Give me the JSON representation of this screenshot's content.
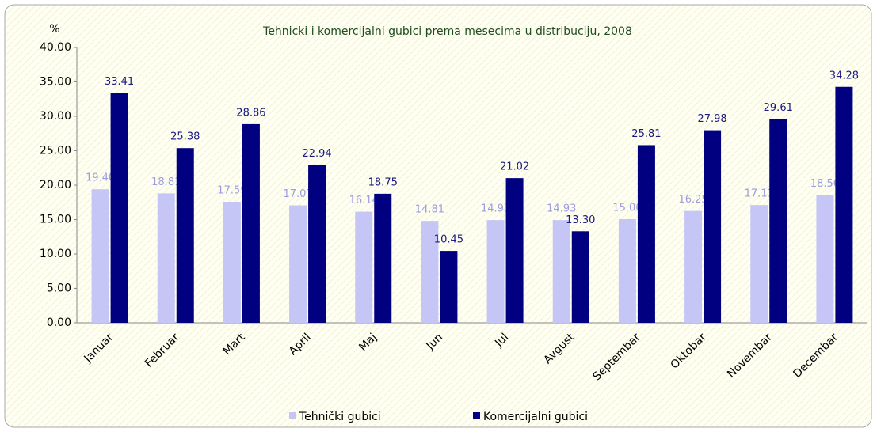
{
  "chart_data": {
    "type": "bar",
    "title": "Tehnicki i komercijalni gubici prema mesecima u distribuciju, 2008",
    "ylabel": "%",
    "categories": [
      "Januar",
      "Februar",
      "Mart",
      "April",
      "Maj",
      "Jun",
      "Jul",
      "Avgust",
      "Septembar",
      "Oktobar",
      "Novembar",
      "Decembar"
    ],
    "series": [
      {
        "name": "Tehnički gubici",
        "color": "#c6c6f6",
        "label_color": "#9d9de0",
        "values": [
          19.4,
          18.81,
          17.59,
          17.07,
          16.14,
          14.81,
          14.93,
          14.93,
          15.06,
          16.25,
          17.11,
          18.56
        ],
        "value_labels": [
          "19.40",
          "18.81",
          "17.59",
          "17.07",
          "16.14",
          "14.81",
          "14.93",
          "14.93",
          "15.06",
          "16.25",
          "17.11",
          "18.56"
        ]
      },
      {
        "name": "Komercijalni gubici",
        "color": "#000080",
        "label_color": "#1a1a80",
        "values": [
          33.41,
          25.38,
          28.86,
          22.94,
          18.75,
          10.45,
          21.02,
          13.3,
          25.81,
          27.98,
          29.61,
          34.28
        ],
        "value_labels": [
          "33.41",
          "25.38",
          "28.86",
          "22.94",
          "18.75",
          "10.45",
          "21.02",
          "13.30",
          "25.81",
          "27.98",
          "29.61",
          "34.28"
        ]
      }
    ],
    "ylim": [
      0,
      40
    ],
    "yticks": [
      {
        "value": 0,
        "label": "0.00"
      },
      {
        "value": 5,
        "label": "5.00"
      },
      {
        "value": 10,
        "label": "10.00"
      },
      {
        "value": 15,
        "label": "15.00"
      },
      {
        "value": 20,
        "label": "20.00"
      },
      {
        "value": 25,
        "label": "25.00"
      },
      {
        "value": 30,
        "label": "30.00"
      },
      {
        "value": 35,
        "label": "35.00"
      },
      {
        "value": 40,
        "label": "40.00"
      }
    ],
    "grid": false,
    "legend": "bottom"
  }
}
